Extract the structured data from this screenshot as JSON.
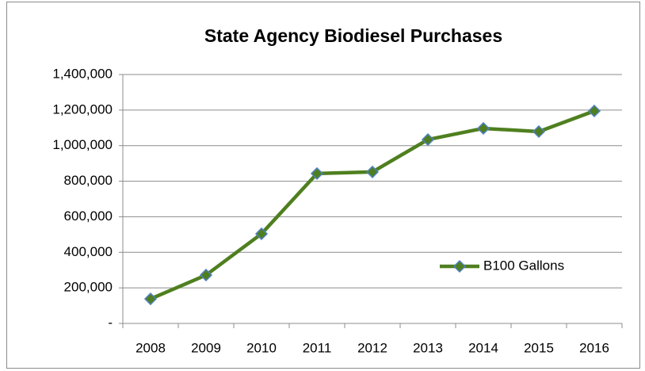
{
  "chart_data": {
    "type": "line",
    "title": "State Agency Biodiesel Purchases",
    "categories": [
      "2008",
      "2009",
      "2010",
      "2011",
      "2012",
      "2013",
      "2014",
      "2015",
      "2016"
    ],
    "series": [
      {
        "name": "B100 Gallons",
        "color": "#4f7f1f",
        "marker_edge": "#4f81bd",
        "values": [
          138000,
          272000,
          504000,
          843000,
          852000,
          1034000,
          1097000,
          1079000,
          1195000
        ]
      }
    ],
    "ylim": [
      0,
      1400000
    ],
    "yticks": [
      {
        "value": 0,
        "label": "-"
      },
      {
        "value": 200000,
        "label": "200,000"
      },
      {
        "value": 400000,
        "label": "400,000"
      },
      {
        "value": 600000,
        "label": "600,000"
      },
      {
        "value": 800000,
        "label": "800,000"
      },
      {
        "value": 1000000,
        "label": "1,000,000"
      },
      {
        "value": 1200000,
        "label": "1,200,000"
      },
      {
        "value": 1400000,
        "label": "1,400,000"
      }
    ],
    "grid": true,
    "legend": "right"
  }
}
